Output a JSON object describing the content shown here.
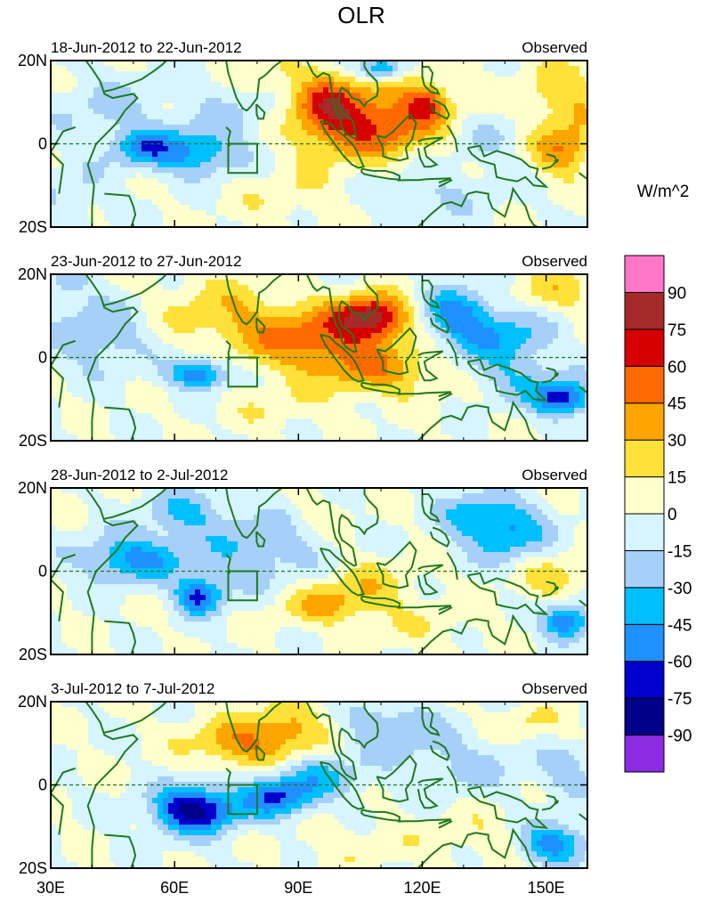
{
  "chart_data": {
    "type": "heatmap",
    "title": "OLR",
    "units": "W/m^2",
    "x_range": [
      30,
      160
    ],
    "y_range": [
      -20,
      20
    ],
    "x_ticks": [
      {
        "value": 30,
        "label": "30E"
      },
      {
        "value": 60,
        "label": "60E"
      },
      {
        "value": 90,
        "label": "90E"
      },
      {
        "value": 120,
        "label": "120E"
      },
      {
        "value": 150,
        "label": "150E"
      }
    ],
    "y_ticks": [
      {
        "value": 20,
        "label": "20N"
      },
      {
        "value": 0,
        "label": "0"
      },
      {
        "value": -20,
        "label": "20S"
      }
    ],
    "box_region": {
      "lon": [
        73,
        80
      ],
      "lat": [
        -7,
        0
      ]
    },
    "levels": [
      -90,
      -75,
      -60,
      -45,
      -30,
      -15,
      0,
      15,
      30,
      45,
      60,
      75,
      90
    ],
    "level_labels": [
      "-90",
      "-75",
      "-60",
      "-45",
      "-30",
      "-15",
      "0",
      "15",
      "30",
      "45",
      "60",
      "75",
      "90"
    ],
    "colors": [
      "#8b2be2",
      "#00008b",
      "#0000cd",
      "#1e90ff",
      "#00bfff",
      "#a6d0f8",
      "#d6f5ff",
      "#ffffcc",
      "#ffe13a",
      "#ffa500",
      "#ff6a00",
      "#d60000",
      "#a52a2a",
      "#ff77c8"
    ],
    "panels": [
      {
        "label": "18-Jun-2012 to 22-Jun-2012",
        "tag": "Observed",
        "anomalies": [
          {
            "lon": 65,
            "lat": -2,
            "sx": 8,
            "sy": 4,
            "amp": -48
          },
          {
            "lon": 52,
            "lat": -1,
            "sx": 5,
            "sy": 3,
            "amp": -40
          },
          {
            "lon": 44,
            "lat": 8,
            "sx": 10,
            "sy": 6,
            "amp": -18
          },
          {
            "lon": 78,
            "lat": 10,
            "sx": 10,
            "sy": 5,
            "amp": -18
          },
          {
            "lon": 82,
            "lat": 15,
            "sx": 5,
            "sy": 4,
            "amp": 22
          },
          {
            "lon": 96,
            "lat": 10,
            "sx": 6,
            "sy": 5,
            "amp": 55
          },
          {
            "lon": 103,
            "lat": 2,
            "sx": 10,
            "sy": 5,
            "amp": 32
          },
          {
            "lon": 114,
            "lat": 7,
            "sx": 11,
            "sy": 6,
            "amp": 45
          },
          {
            "lon": 121,
            "lat": 10,
            "sx": 3,
            "sy": 3,
            "amp": 35
          },
          {
            "lon": 110,
            "lat": 18,
            "sx": 4,
            "sy": 2,
            "amp": -55
          },
          {
            "lon": 135,
            "lat": 2,
            "sx": 8,
            "sy": 5,
            "amp": -18
          },
          {
            "lon": 155,
            "lat": 10,
            "sx": 8,
            "sy": 7,
            "amp": 28
          },
          {
            "lon": 154,
            "lat": -2,
            "sx": 5,
            "sy": 4,
            "amp": 40
          },
          {
            "lon": 90,
            "lat": -12,
            "sx": 12,
            "sy": 5,
            "amp": 12
          },
          {
            "lon": 120,
            "lat": -12,
            "sx": 12,
            "sy": 5,
            "amp": -16
          },
          {
            "lon": 35,
            "lat": -12,
            "sx": 6,
            "sy": 5,
            "amp": -16
          }
        ]
      },
      {
        "label": "23-Jun-2012 to 27-Jun-2012",
        "tag": "Observed",
        "anomalies": [
          {
            "lon": 66,
            "lat": -4,
            "sx": 5,
            "sy": 2.5,
            "amp": -62
          },
          {
            "lon": 42,
            "lat": 5,
            "sx": 8,
            "sy": 6,
            "amp": -28
          },
          {
            "lon": 33,
            "lat": 17,
            "sx": 5,
            "sy": 4,
            "amp": -20
          },
          {
            "lon": 70,
            "lat": 12,
            "sx": 10,
            "sy": 6,
            "amp": 20
          },
          {
            "lon": 88,
            "lat": 6,
            "sx": 12,
            "sy": 5,
            "amp": 30
          },
          {
            "lon": 108,
            "lat": 10,
            "sx": 6,
            "sy": 3.5,
            "amp": 75
          },
          {
            "lon": 100,
            "lat": 2,
            "sx": 12,
            "sy": 6,
            "amp": 35
          },
          {
            "lon": 112,
            "lat": -4,
            "sx": 10,
            "sy": 4,
            "amp": 25
          },
          {
            "lon": 128,
            "lat": 10,
            "sx": 6,
            "sy": 5,
            "amp": -48
          },
          {
            "lon": 140,
            "lat": 5,
            "sx": 8,
            "sy": 5,
            "amp": -38
          },
          {
            "lon": 154,
            "lat": -10,
            "sx": 5,
            "sy": 3,
            "amp": -68
          },
          {
            "lon": 143,
            "lat": -5,
            "sx": 8,
            "sy": 4,
            "amp": -22
          },
          {
            "lon": 152,
            "lat": 16,
            "sx": 8,
            "sy": 4,
            "amp": 22
          },
          {
            "lon": 85,
            "lat": -12,
            "sx": 10,
            "sy": 4,
            "amp": 10
          }
        ]
      },
      {
        "label": "28-Jun-2012 to 2-Jul-2012",
        "tag": "Observed",
        "anomalies": [
          {
            "lon": 50,
            "lat": 3,
            "sx": 9,
            "sy": 4,
            "amp": -50
          },
          {
            "lon": 66,
            "lat": -6,
            "sx": 4,
            "sy": 3,
            "amp": -65
          },
          {
            "lon": 62,
            "lat": 14,
            "sx": 7,
            "sy": 4,
            "amp": -30
          },
          {
            "lon": 80,
            "lat": 5,
            "sx": 10,
            "sy": 7,
            "amp": -28
          },
          {
            "lon": 95,
            "lat": 14,
            "sx": 5,
            "sy": 3,
            "amp": 12
          },
          {
            "lon": 97,
            "lat": -8,
            "sx": 9,
            "sy": 3.5,
            "amp": 32
          },
          {
            "lon": 108,
            "lat": -3,
            "sx": 8,
            "sy": 4,
            "amp": 18
          },
          {
            "lon": 140,
            "lat": 10,
            "sx": 7,
            "sy": 5,
            "amp": -50
          },
          {
            "lon": 130,
            "lat": 14,
            "sx": 5,
            "sy": 4,
            "amp": -22
          },
          {
            "lon": 155,
            "lat": -12,
            "sx": 4,
            "sy": 3,
            "amp": -65
          },
          {
            "lon": 152,
            "lat": -2,
            "sx": 6,
            "sy": 4,
            "amp": 22
          },
          {
            "lon": 120,
            "lat": -14,
            "sx": 10,
            "sy": 4,
            "amp": 10
          }
        ]
      },
      {
        "label": "3-Jul-2012 to 7-Jul-2012",
        "tag": "Observed",
        "anomalies": [
          {
            "lon": 65,
            "lat": -6,
            "sx": 7,
            "sy": 4,
            "amp": -85
          },
          {
            "lon": 85,
            "lat": -3,
            "sx": 6,
            "sy": 3.5,
            "amp": -55
          },
          {
            "lon": 76,
            "lat": 10,
            "sx": 9,
            "sy": 4,
            "amp": 40
          },
          {
            "lon": 88,
            "lat": 14,
            "sx": 7,
            "sy": 5,
            "amp": 28
          },
          {
            "lon": 95,
            "lat": 2,
            "sx": 8,
            "sy": 4,
            "amp": -30
          },
          {
            "lon": 112,
            "lat": 14,
            "sx": 8,
            "sy": 5,
            "amp": -28
          },
          {
            "lon": 130,
            "lat": 5,
            "sx": 10,
            "sy": 5,
            "amp": -20
          },
          {
            "lon": 145,
            "lat": 15,
            "sx": 6,
            "sy": 3,
            "amp": 18
          },
          {
            "lon": 152,
            "lat": -14,
            "sx": 6,
            "sy": 3.5,
            "amp": -55
          },
          {
            "lon": 105,
            "lat": -14,
            "sx": 12,
            "sy": 4,
            "amp": 10
          },
          {
            "lon": 135,
            "lat": -12,
            "sx": 8,
            "sy": 4,
            "amp": 12
          },
          {
            "lon": 155,
            "lat": 3,
            "sx": 5,
            "sy": 4,
            "amp": -25
          }
        ]
      }
    ]
  }
}
